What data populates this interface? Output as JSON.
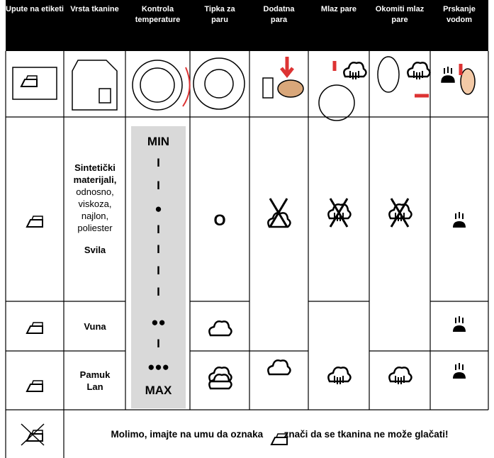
{
  "header": [
    "Upute na etiketi",
    "Vrsta tkanine",
    "Kontrola temperature",
    "Tipka za paru",
    "Dodatna para",
    "Mlaz pare",
    "Okomiti mlaz pare",
    "Prskanje vodom"
  ],
  "rows": [
    {
      "fabric_bold": "Sintetički materijali,",
      "fabric": "odnosno, viskoza, najlon, poliester",
      "fabric_extra": "Svila",
      "steam_button": "O"
    },
    {
      "fabric_bold": "Vuna"
    },
    {
      "fabric_bold": [
        "Pamuk",
        "Lan"
      ]
    }
  ],
  "temperature_scale": [
    "MIN",
    "I",
    "I",
    "●",
    "I",
    "I",
    "I",
    "I",
    "●●",
    "I",
    "●●●",
    "MAX"
  ],
  "note": [
    "Molimo, imajte na umu da oznaka",
    "znači da se tkanina ne može glačati!"
  ]
}
